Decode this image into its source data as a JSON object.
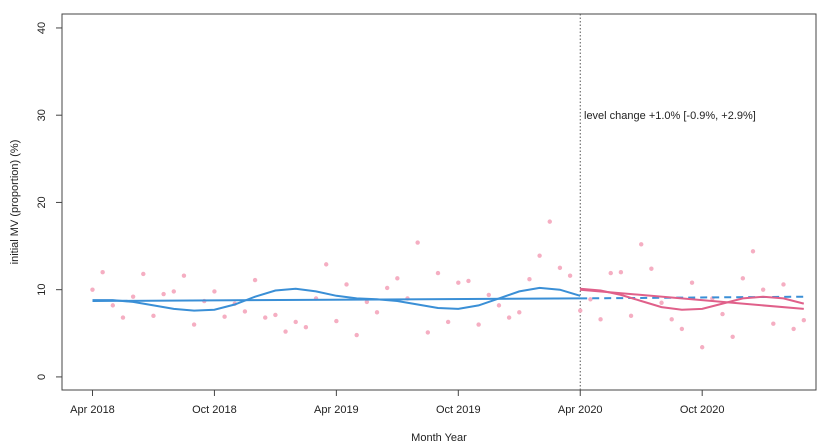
{
  "chart_data": {
    "type": "interrupted-time-series",
    "y_label": "initial MV (proportion) (%)",
    "x_label": "Month Year",
    "annotation": "level change +1.0% [-0.9%, +2.9%]",
    "xlim": [
      -1.5,
      35.6
    ],
    "ylim": [
      -1.5,
      41.6
    ],
    "xticks": [
      {
        "value": 0,
        "label": "Apr 2018"
      },
      {
        "value": 6,
        "label": "Oct 2018"
      },
      {
        "value": 12,
        "label": "Apr 2019"
      },
      {
        "value": 18,
        "label": "Oct 2019"
      },
      {
        "value": 24,
        "label": "Apr 2020"
      },
      {
        "value": 30,
        "label": "Oct 2020"
      }
    ],
    "yticks": [
      0,
      10,
      20,
      30,
      40
    ],
    "vline": 24,
    "series": [
      {
        "mode": "markers",
        "color": "#f5aec2",
        "x": [
          0,
          0.5,
          1,
          1.5,
          2,
          2.5,
          3,
          3.5,
          4,
          4.5,
          5,
          5.5,
          6,
          6.5,
          7,
          7.5,
          8,
          8.5,
          9,
          9.5,
          10,
          10.5,
          11,
          11.5,
          12,
          12.5,
          13,
          13.5,
          14,
          14.5,
          15,
          15.5,
          16,
          16.5,
          17,
          17.5,
          18,
          18.5,
          19,
          19.5,
          20,
          20.5,
          21,
          21.5,
          22,
          22.5,
          23,
          23.5,
          24,
          24.5,
          25,
          25.5,
          26,
          26.5,
          27,
          27.5,
          28,
          28.5,
          29,
          29.5,
          30,
          30.5,
          31,
          31.5,
          32,
          32.5,
          33,
          33.5,
          34,
          34.5,
          35
        ],
        "values": [
          10.0,
          12.0,
          8.2,
          6.8,
          9.2,
          11.8,
          7.0,
          9.5,
          9.8,
          11.6,
          6.0,
          8.7,
          9.8,
          6.9,
          8.4,
          7.5,
          11.1,
          6.8,
          7.1,
          5.2,
          6.3,
          5.7,
          9.0,
          12.9,
          6.4,
          10.6,
          4.8,
          8.6,
          7.4,
          10.2,
          11.3,
          9.0,
          15.4,
          5.1,
          11.9,
          6.3,
          10.8,
          11.0,
          6.0,
          9.4,
          8.2,
          6.8,
          7.4,
          11.2,
          13.9,
          17.8,
          12.5,
          11.6,
          7.6,
          8.9,
          6.6,
          11.9,
          12.0,
          7.0,
          15.2,
          12.4,
          8.5,
          6.6,
          5.5,
          10.8,
          3.4,
          9.0,
          7.2,
          4.6,
          11.3,
          14.4,
          10.0,
          6.1,
          10.6,
          5.5,
          6.5
        ]
      },
      {
        "mode": "lines",
        "color": "#3a8fd6",
        "dash": false,
        "x": [
          0,
          24
        ],
        "values": [
          8.7,
          9.0
        ]
      },
      {
        "mode": "lines",
        "color": "#3a8fd6",
        "dash": false,
        "x": [
          0,
          1,
          2,
          3,
          4,
          5,
          6,
          7,
          8,
          9,
          10,
          11,
          12,
          13,
          14,
          15,
          16,
          17,
          18,
          19,
          20,
          21,
          22,
          23,
          24
        ],
        "values": [
          8.8,
          8.8,
          8.6,
          8.2,
          7.8,
          7.6,
          7.7,
          8.3,
          9.2,
          9.9,
          10.1,
          9.8,
          9.3,
          9.0,
          8.9,
          8.7,
          8.3,
          7.9,
          7.8,
          8.2,
          9.0,
          9.8,
          10.2,
          10.0,
          9.3
        ]
      },
      {
        "mode": "lines",
        "color": "#3a8fd6",
        "dash": true,
        "x": [
          24,
          35
        ],
        "values": [
          9.0,
          9.2
        ]
      },
      {
        "mode": "lines",
        "color": "#e0608a",
        "dash": false,
        "x": [
          24,
          35
        ],
        "values": [
          10.0,
          7.8
        ]
      },
      {
        "mode": "lines",
        "color": "#e0608a",
        "dash": false,
        "x": [
          24,
          25,
          26,
          27,
          28,
          29,
          30,
          31,
          32,
          33,
          34,
          35
        ],
        "values": [
          10.1,
          9.9,
          9.4,
          8.7,
          8.0,
          7.7,
          7.8,
          8.4,
          9.0,
          9.2,
          9.0,
          8.4
        ]
      }
    ]
  }
}
